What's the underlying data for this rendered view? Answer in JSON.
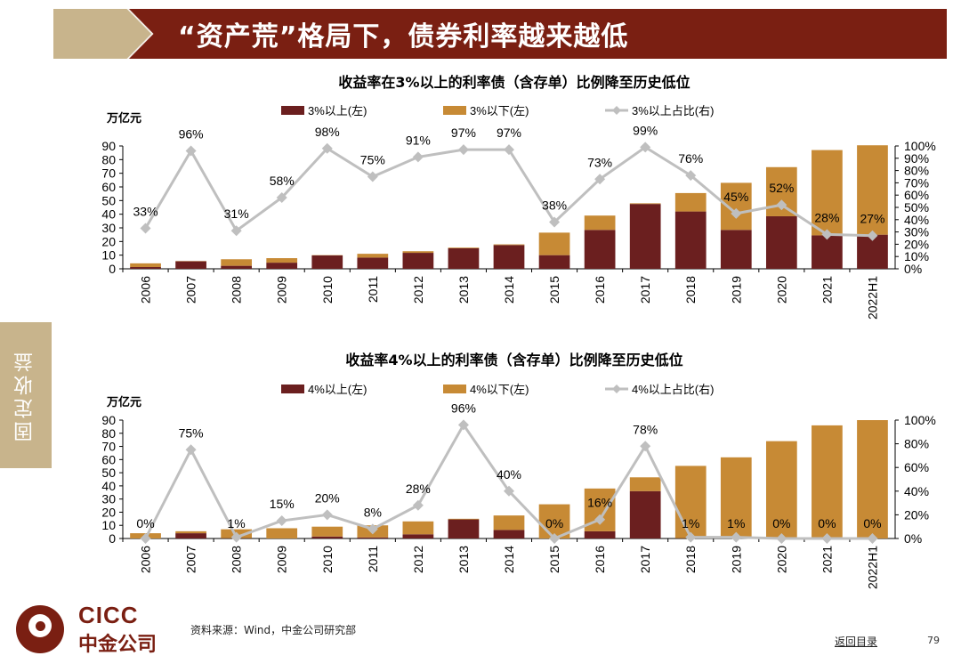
{
  "page_title": "“资产荒”格局下，债券利率越来越低",
  "side_tab": "固定收益",
  "source_note": "资料来源：Wind，中金公司研究部",
  "back_link": "返回目录",
  "page_number": "79",
  "logo": {
    "en": "CICC",
    "cn": "中金公司"
  },
  "colors": {
    "dark": "#6b1f1f",
    "light": "#c78a35",
    "line": "#bfbfbf",
    "title_red": "#7a1f12",
    "tab": "#c8b48c"
  },
  "chart_data": [
    {
      "type": "bar",
      "stacked": true,
      "title": "收益率在3%以上的利率债（含存单）比例降至历史低位",
      "ylabel": "万亿元",
      "categories": [
        "2006",
        "2007",
        "2008",
        "2009",
        "2010",
        "2011",
        "2012",
        "2013",
        "2014",
        "2015",
        "2016",
        "2017",
        "2018",
        "2019",
        "2020",
        "2021",
        "2022H1"
      ],
      "ylim": [
        0,
        90
      ],
      "yticks": [
        0,
        10,
        20,
        30,
        40,
        50,
        60,
        70,
        80,
        90
      ],
      "y2lim": [
        0,
        1
      ],
      "y2ticks": [
        "0%",
        "10%",
        "20%",
        "30%",
        "40%",
        "50%",
        "60%",
        "70%",
        "80%",
        "90%",
        "100%"
      ],
      "series": [
        {
          "name": "3%以上(左)",
          "kind": "bar",
          "color": "#6b1f1f",
          "values": [
            1.3,
            5.5,
            2.2,
            4.5,
            9.8,
            8.2,
            11.7,
            15.0,
            17.4,
            10.0,
            28.5,
            47.5,
            42.0,
            28.5,
            38.5,
            24.5,
            25.0
          ]
        },
        {
          "name": "3%以下(左)",
          "kind": "bar",
          "color": "#c78a35",
          "values": [
            2.7,
            0.2,
            4.8,
            3.3,
            0.2,
            2.8,
            1.2,
            0.5,
            0.5,
            16.5,
            10.5,
            0.5,
            13.5,
            34.5,
            36.0,
            62.5,
            65.5
          ]
        },
        {
          "name": "3%以上占比(右)",
          "kind": "line",
          "color": "#bfbfbf",
          "values": [
            0.33,
            0.96,
            0.31,
            0.58,
            0.98,
            0.75,
            0.91,
            0.97,
            0.97,
            0.38,
            0.73,
            0.99,
            0.76,
            0.45,
            0.52,
            0.28,
            0.27
          ],
          "labels": [
            "33%",
            "96%",
            "31%",
            "58%",
            "98%",
            "75%",
            "91%",
            "97%",
            "97%",
            "38%",
            "73%",
            "99%",
            "76%",
            "45%",
            "52%",
            "28%",
            "27%"
          ]
        }
      ]
    },
    {
      "type": "bar",
      "stacked": true,
      "title": "收益率4%以上的利率债（含存单）比例降至历史低位",
      "ylabel": "万亿元",
      "categories": [
        "2006",
        "2007",
        "2008",
        "2009",
        "2010",
        "2011",
        "2012",
        "2013",
        "2014",
        "2015",
        "2016",
        "2017",
        "2018",
        "2019",
        "2020",
        "2021",
        "2022H1"
      ],
      "ylim": [
        0,
        90
      ],
      "yticks": [
        0,
        10,
        20,
        30,
        40,
        50,
        60,
        70,
        80,
        90
      ],
      "y2lim": [
        0,
        1
      ],
      "y2ticks": [
        "0%",
        "20%",
        "40%",
        "60%",
        "80%",
        "100%"
      ],
      "series": [
        {
          "name": "4%以上(左)",
          "kind": "bar",
          "color": "#6b1f1f",
          "values": [
            0,
            4.0,
            0.2,
            0,
            1.5,
            0.8,
            3.2,
            14.5,
            6.5,
            0,
            5.5,
            36.0,
            0.2,
            0.2,
            0,
            0,
            0
          ]
        },
        {
          "name": "4%以下(左)",
          "kind": "bar",
          "color": "#c78a35",
          "values": [
            4.0,
            1.5,
            6.8,
            7.8,
            7.5,
            9.2,
            9.8,
            0.5,
            11.0,
            26.0,
            32.5,
            10.5,
            55.0,
            61.5,
            74.0,
            86.0,
            90.0
          ]
        },
        {
          "name": "4%以上占比(右)",
          "kind": "line",
          "color": "#bfbfbf",
          "values": [
            0.0,
            0.75,
            0.01,
            0.15,
            0.2,
            0.08,
            0.28,
            0.96,
            0.4,
            0.0,
            0.16,
            0.78,
            0.01,
            0.01,
            0.0,
            0.0,
            0.0
          ],
          "labels": [
            "0%",
            "75%",
            "1%",
            "15%",
            "20%",
            "8%",
            "28%",
            "96%",
            "40%",
            "0%",
            "16%",
            "78%",
            "1%",
            "1%",
            "0%",
            "0%",
            "0%"
          ]
        }
      ]
    }
  ]
}
